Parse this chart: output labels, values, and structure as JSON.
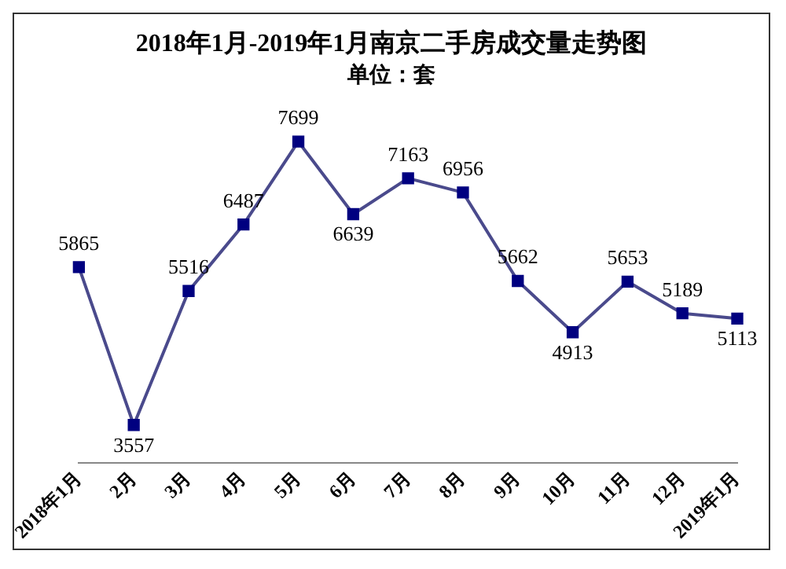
{
  "chart_data": {
    "type": "line",
    "title": "2018年1月-2019年1月南京二手房成交量走势图",
    "subtitle": "单位：套",
    "categories": [
      "2018年1月",
      "2月",
      "3月",
      "4月",
      "5月",
      "6月",
      "7月",
      "8月",
      "9月",
      "10月",
      "11月",
      "12月",
      "2019年1月"
    ],
    "series": [
      {
        "color": "#4a4a8c",
        "values": [
          5865,
          3557,
          5516,
          6487,
          7699,
          6639,
          7163,
          6956,
          5662,
          4913,
          5653,
          5189,
          5113
        ]
      }
    ],
    "marker": "square",
    "line_style": "solid",
    "data_labels": true,
    "grid": false,
    "legend": false,
    "tick_labels": "x"
  }
}
